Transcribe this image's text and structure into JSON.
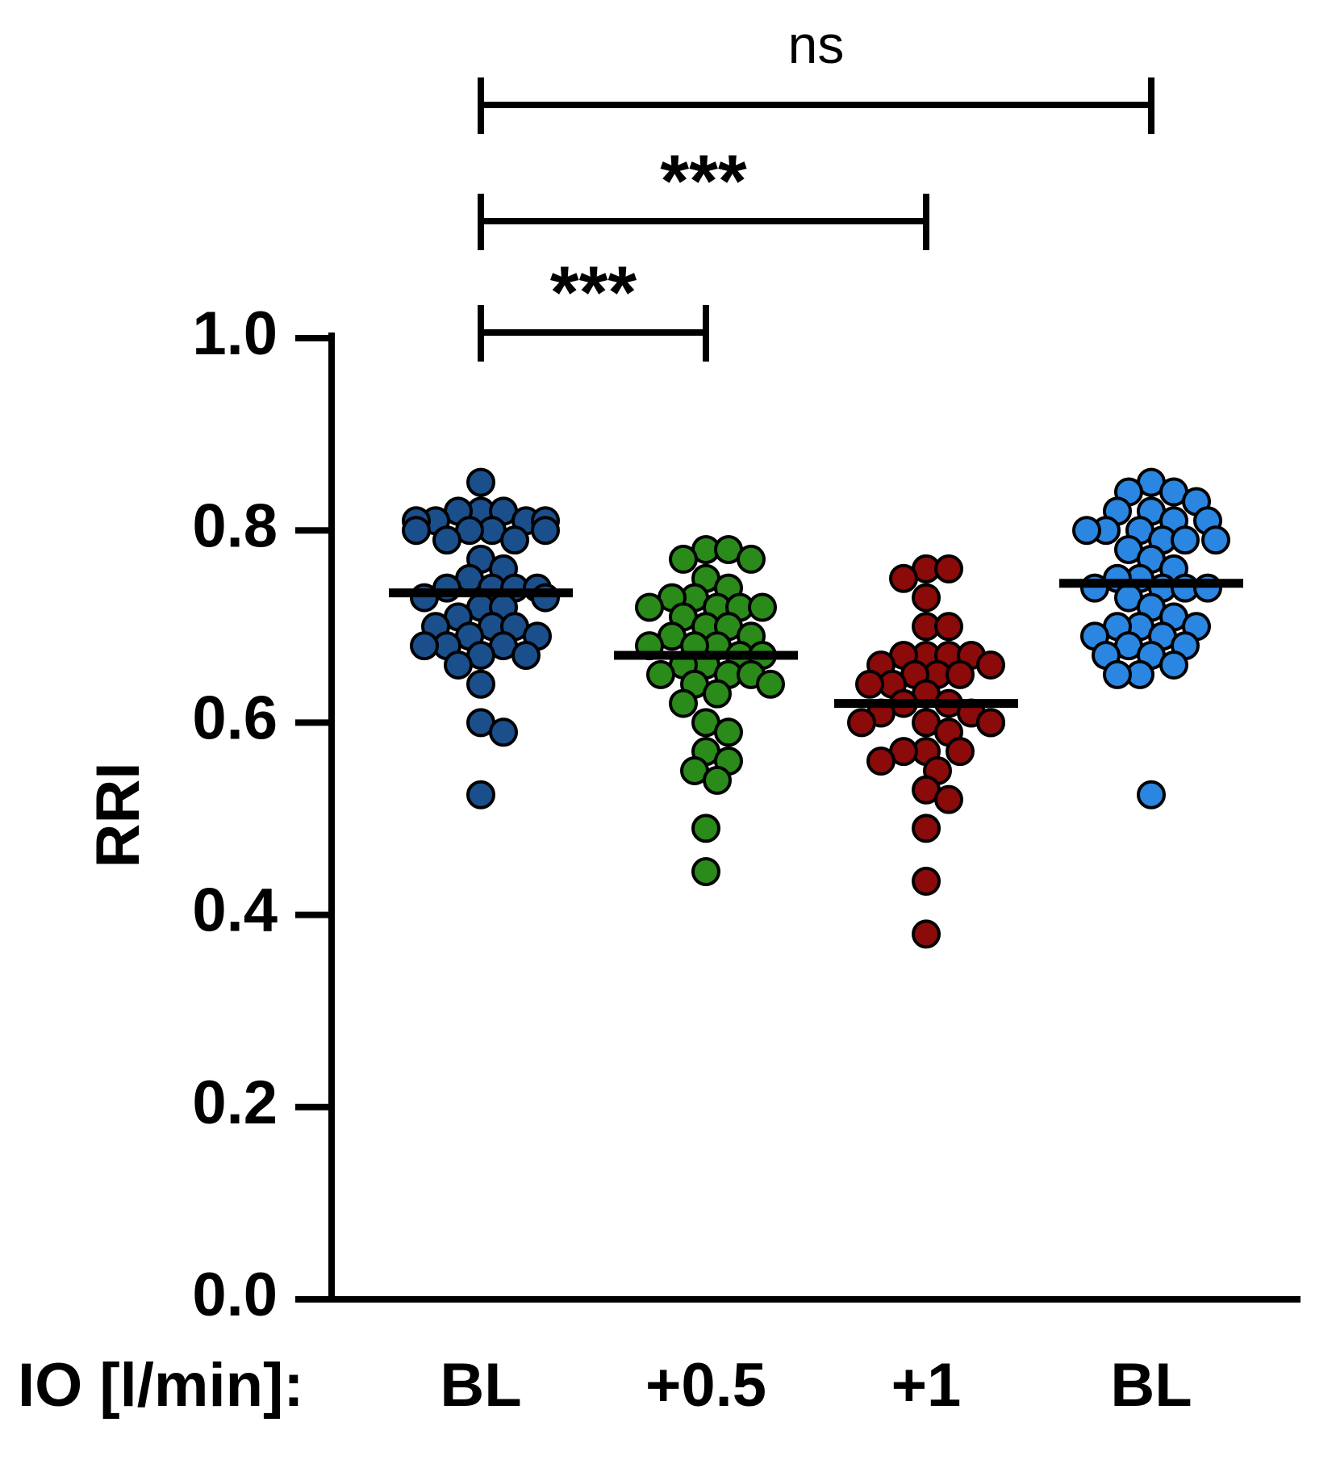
{
  "chart_data": {
    "type": "scatter",
    "subtype": "dot-plot-with-mean",
    "ylabel": "RRI",
    "ylim": [
      0.0,
      1.0
    ],
    "yticks": [
      "0.0",
      "0.2",
      "0.4",
      "0.6",
      "0.8",
      "1.0"
    ],
    "x_group_title": "IO [l/min]:",
    "categories": [
      "BL",
      "+0.5",
      "+1",
      "BL"
    ],
    "series": [
      {
        "color": "#1a4f8c",
        "mean": 0.735,
        "values": [
          0.85,
          0.82,
          0.82,
          0.82,
          0.81,
          0.81,
          0.81,
          0.81,
          0.8,
          0.8,
          0.8,
          0.8,
          0.79,
          0.79,
          0.77,
          0.76,
          0.75,
          0.74,
          0.74,
          0.74,
          0.74,
          0.73,
          0.73,
          0.72,
          0.72,
          0.71,
          0.7,
          0.7,
          0.7,
          0.69,
          0.69,
          0.68,
          0.68,
          0.68,
          0.67,
          0.67,
          0.66,
          0.64,
          0.6,
          0.59,
          0.525
        ]
      },
      {
        "color": "#2a8a1a",
        "mean": 0.67,
        "values": [
          0.78,
          0.78,
          0.77,
          0.77,
          0.75,
          0.74,
          0.73,
          0.73,
          0.72,
          0.72,
          0.72,
          0.72,
          0.71,
          0.7,
          0.7,
          0.69,
          0.69,
          0.68,
          0.68,
          0.68,
          0.67,
          0.67,
          0.66,
          0.66,
          0.65,
          0.65,
          0.65,
          0.64,
          0.64,
          0.63,
          0.62,
          0.6,
          0.59,
          0.57,
          0.56,
          0.55,
          0.54,
          0.49,
          0.445
        ]
      },
      {
        "color": "#8b0a0a",
        "mean": 0.62,
        "values": [
          0.76,
          0.76,
          0.75,
          0.73,
          0.7,
          0.7,
          0.67,
          0.67,
          0.67,
          0.67,
          0.66,
          0.66,
          0.65,
          0.65,
          0.65,
          0.64,
          0.64,
          0.63,
          0.62,
          0.62,
          0.61,
          0.61,
          0.6,
          0.6,
          0.6,
          0.6,
          0.6,
          0.59,
          0.57,
          0.57,
          0.57,
          0.56,
          0.55,
          0.53,
          0.52,
          0.49,
          0.435,
          0.38
        ]
      },
      {
        "color": "#2a86e0",
        "mean": 0.745,
        "values": [
          0.85,
          0.84,
          0.84,
          0.83,
          0.82,
          0.82,
          0.81,
          0.81,
          0.8,
          0.8,
          0.8,
          0.79,
          0.79,
          0.79,
          0.78,
          0.77,
          0.76,
          0.75,
          0.75,
          0.74,
          0.74,
          0.74,
          0.74,
          0.73,
          0.72,
          0.71,
          0.7,
          0.7,
          0.7,
          0.69,
          0.69,
          0.68,
          0.68,
          0.67,
          0.67,
          0.66,
          0.65,
          0.65,
          0.525
        ]
      }
    ],
    "comparisons": [
      {
        "from": 0,
        "to": 1,
        "label": "***"
      },
      {
        "from": 0,
        "to": 2,
        "label": "***"
      },
      {
        "from": 0,
        "to": 3,
        "label": "ns"
      }
    ]
  }
}
